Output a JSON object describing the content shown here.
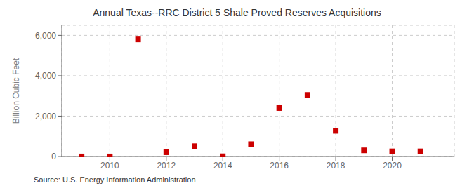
{
  "chart_data": {
    "type": "scatter",
    "title": "Annual Texas--RRC District 5 Shale Proved Reserves Acquisitions",
    "ylabel": "Billion Cubic Feet",
    "annotations": [
      "Source: U.S. Energy Information Administration"
    ],
    "x": [
      2009,
      2010,
      2011,
      2012,
      2013,
      2014,
      2015,
      2016,
      2017,
      2018,
      2019,
      2020,
      2021
    ],
    "values": [
      2,
      2,
      5800,
      210,
      510,
      10,
      610,
      2400,
      3050,
      1270,
      305,
      255,
      255
    ],
    "color": "#cc0000",
    "marker": "square",
    "xlim": [
      2008.3,
      2022.2
    ],
    "xticks": [
      2010,
      2012,
      2014,
      2016,
      2018,
      2020
    ],
    "ylim": [
      0,
      6500
    ],
    "yticks": [
      0,
      {
        "value": 2000,
        "label": "2,000"
      },
      {
        "value": 4000,
        "label": "4,000"
      },
      {
        "value": 6000,
        "label": "6,000"
      }
    ],
    "grid": true
  }
}
